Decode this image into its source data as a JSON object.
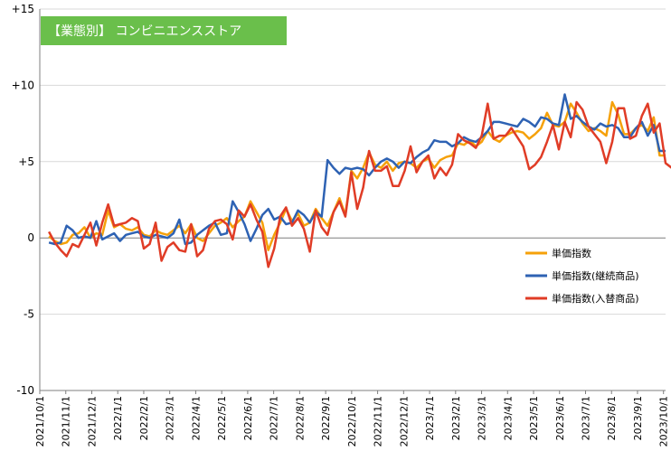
{
  "chart_data": {
    "type": "line",
    "title": "【業態別】 コンビニエンスストア",
    "xlabel": "",
    "ylabel": "",
    "ylim": [
      -10,
      15
    ],
    "yticks": [
      15,
      10,
      5,
      0,
      -5,
      -10
    ],
    "ytick_labels": [
      "+15",
      "+10",
      "+5",
      "0",
      "-5",
      "-10"
    ],
    "grid": true,
    "legend": "right",
    "x_start": "2021/10/1",
    "x_ticks": [
      "2021/10/1",
      "2021/11/1",
      "2021/12/1",
      "2022/1/1",
      "2022/2/1",
      "2022/3/1",
      "2022/4/1",
      "2022/5/1",
      "2022/6/1",
      "2022/7/1",
      "2022/8/1",
      "2022/9/1",
      "2022/10/1",
      "2022/11/1",
      "2022/12/1",
      "2023/1/1",
      "2023/2/1",
      "2023/3/1",
      "2023/4/1",
      "2023/5/1",
      "2023/6/1",
      "2023/7/1",
      "2023/8/1",
      "2023/9/1",
      "2023/10/1"
    ],
    "series": [
      {
        "name": "単価指数",
        "color": "#f5a10a",
        "values": [
          0.1,
          -0.2,
          -0.4,
          -0.3,
          0.2,
          0.3,
          0.7,
          0.0,
          0.3,
          0.2,
          1.8,
          0.7,
          0.9,
          0.6,
          0.5,
          0.7,
          0.2,
          0.1,
          0.5,
          0.3,
          0.2,
          0.5,
          0.8,
          0.3,
          0.9,
          0.0,
          -0.2,
          0.3,
          0.8,
          1.0,
          1.3,
          0.7,
          1.1,
          1.4,
          2.4,
          1.7,
          1.0,
          -0.8,
          0.2,
          1.0,
          1.9,
          1.1,
          1.6,
          0.8,
          1.0,
          1.9,
          1.3,
          0.8,
          1.7,
          2.6,
          1.5,
          4.4,
          3.9,
          4.6,
          5.6,
          4.8,
          4.6,
          5.0,
          4.4,
          4.9,
          5.0,
          4.9,
          4.6,
          5.0,
          5.2,
          4.6,
          5.1,
          5.3,
          5.4,
          6.2,
          6.1,
          6.4,
          6.0,
          6.3,
          7.0,
          6.5,
          6.3,
          6.7,
          6.9,
          7.0,
          6.9,
          6.5,
          6.8,
          7.2,
          8.2,
          7.4,
          7.3,
          7.6,
          8.8,
          8.2,
          7.5,
          7.0,
          7.2,
          7.0,
          6.7,
          8.9,
          8.1,
          6.8,
          6.8,
          7.2,
          7.4,
          7.0,
          7.9,
          5.4,
          5.4
        ]
      },
      {
        "name": "単価指数(継続商品)",
        "color": "#2e62b3",
        "values": [
          -0.3,
          -0.4,
          -0.3,
          0.8,
          0.5,
          0.0,
          0.1,
          0.0,
          1.1,
          -0.1,
          0.1,
          0.3,
          -0.2,
          0.2,
          0.3,
          0.4,
          0.1,
          0.0,
          0.2,
          0.1,
          0.0,
          0.3,
          1.2,
          -0.4,
          -0.3,
          0.2,
          0.5,
          0.8,
          1.0,
          0.2,
          0.3,
          2.4,
          1.7,
          0.9,
          -0.2,
          0.6,
          1.5,
          1.9,
          1.2,
          1.4,
          0.9,
          1.0,
          1.8,
          1.5,
          1.0,
          1.7,
          1.4,
          5.1,
          4.6,
          4.2,
          4.6,
          4.5,
          4.6,
          4.5,
          4.1,
          4.6,
          5.0,
          5.2,
          5.0,
          4.6,
          5.0,
          4.9,
          5.3,
          5.6,
          5.8,
          6.4,
          6.3,
          6.3,
          6.0,
          6.2,
          6.6,
          6.4,
          6.3,
          6.6,
          7.0,
          7.6,
          7.6,
          7.5,
          7.4,
          7.3,
          7.8,
          7.6,
          7.3,
          7.9,
          7.8,
          7.5,
          7.4,
          9.4,
          7.8,
          8.0,
          7.6,
          7.3,
          7.1,
          7.5,
          7.3,
          7.4,
          7.2,
          6.6,
          6.6,
          7.2,
          7.6,
          6.7,
          7.4,
          5.7,
          5.7
        ]
      },
      {
        "name": "単価指数(入替商品)",
        "color": "#e03c26",
        "values": [
          0.4,
          -0.3,
          -0.8,
          -1.2,
          -0.4,
          -0.6,
          0.2,
          1.0,
          -0.5,
          1.0,
          2.2,
          0.8,
          0.9,
          1.0,
          1.3,
          1.1,
          -0.7,
          -0.4,
          1.0,
          -1.5,
          -0.6,
          -0.3,
          -0.8,
          -0.9,
          0.9,
          -1.2,
          -0.8,
          0.6,
          1.1,
          1.2,
          0.9,
          -0.1,
          1.8,
          1.4,
          2.2,
          1.2,
          0.4,
          -1.9,
          -0.7,
          1.4,
          2.0,
          0.8,
          1.3,
          0.6,
          -0.9,
          1.8,
          0.7,
          0.2,
          1.7,
          2.4,
          1.4,
          4.3,
          1.9,
          3.3,
          5.7,
          4.4,
          4.4,
          4.7,
          3.4,
          3.4,
          4.4,
          6.0,
          4.3,
          5.0,
          5.4,
          3.9,
          4.6,
          4.1,
          4.8,
          6.8,
          6.4,
          6.2,
          5.9,
          6.7,
          8.8,
          6.5,
          6.7,
          6.7,
          7.2,
          6.6,
          6.0,
          4.5,
          4.8,
          5.3,
          6.3,
          7.4,
          5.8,
          7.6,
          6.6,
          8.9,
          8.4,
          7.3,
          6.8,
          6.3,
          4.9,
          6.3,
          8.5,
          8.5,
          6.5,
          6.7,
          8.0,
          8.8,
          6.9,
          7.5,
          4.9,
          4.6
        ]
      }
    ]
  }
}
